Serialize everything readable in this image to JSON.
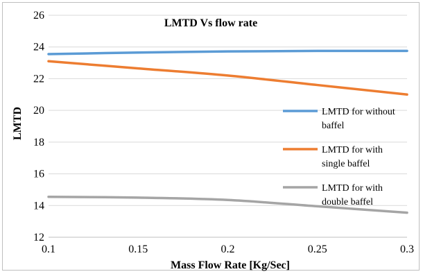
{
  "chart_data": {
    "type": "line",
    "title": "LMTD Vs flow rate",
    "xlabel": "Mass Flow Rate [Kg/Sec]",
    "ylabel": "LMTD",
    "xlim": [
      0.1,
      0.3
    ],
    "ylim": [
      12,
      26
    ],
    "xticks": [
      "0.1",
      "0.15",
      "0.2",
      "0.25",
      "0.3"
    ],
    "yticks": [
      "12",
      "14",
      "16",
      "18",
      "20",
      "22",
      "24",
      "26"
    ],
    "x": [
      0.1,
      0.15,
      0.2,
      0.25,
      0.3
    ],
    "series": [
      {
        "name": "LMTD for without baffel",
        "legend_lines": [
          "LMTD for without",
          "baffel"
        ],
        "color": "#5b9bd5",
        "values": [
          23.55,
          23.65,
          23.72,
          23.75,
          23.75
        ]
      },
      {
        "name": "LMTD for with single baffel",
        "legend_lines": [
          "LMTD for with",
          "single baffel"
        ],
        "color": "#ed7d31",
        "values": [
          23.1,
          22.65,
          22.2,
          21.6,
          21.0
        ]
      },
      {
        "name": "LMTD for with double baffel",
        "legend_lines": [
          "LMTD for with",
          "double baffel"
        ],
        "color": "#a5a5a5",
        "values": [
          14.55,
          14.5,
          14.35,
          13.95,
          13.55
        ]
      }
    ],
    "grid": "horizontal",
    "legend_position": "right"
  }
}
